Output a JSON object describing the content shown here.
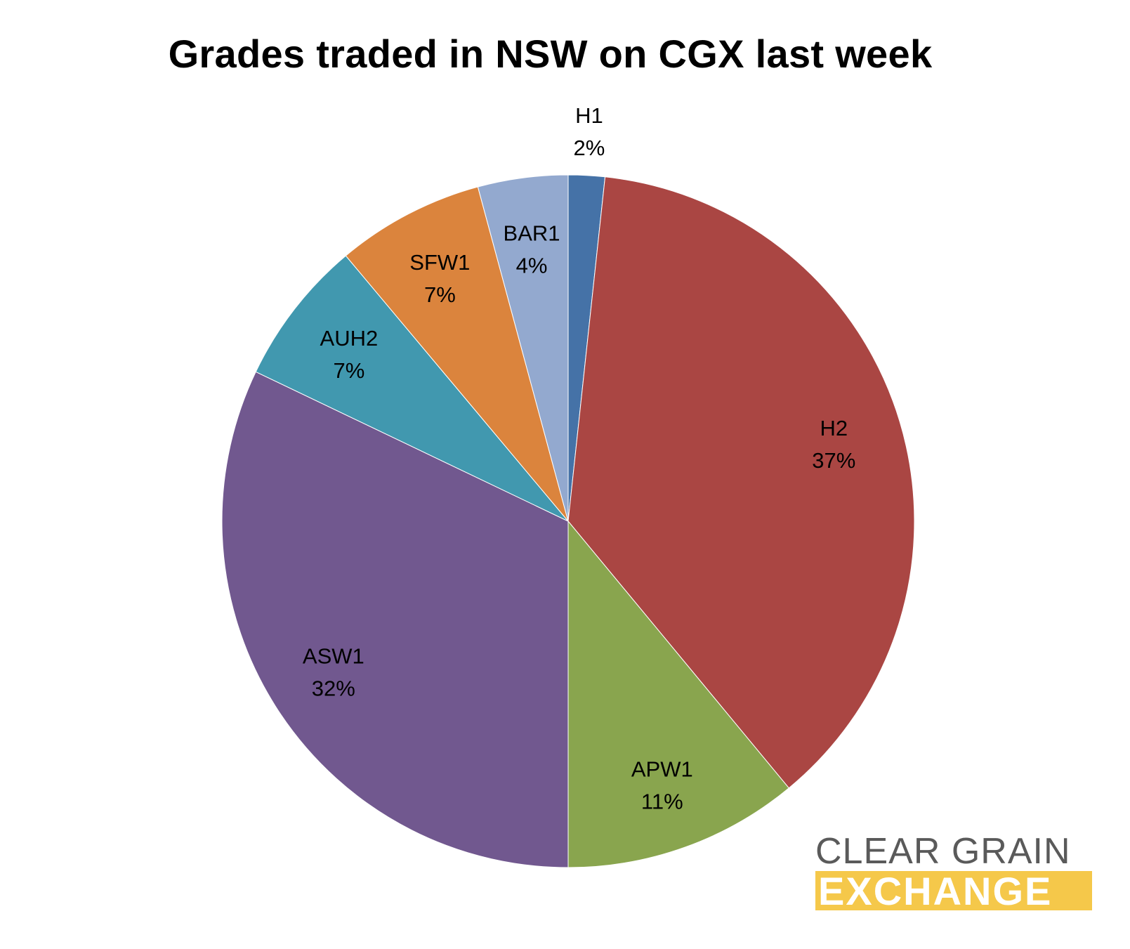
{
  "chart_data": {
    "type": "pie",
    "title": "Grades traded in NSW on CGX last week",
    "slices": [
      {
        "label": "H1",
        "value_label": "2%",
        "value": 1.7,
        "color": "#4572a7"
      },
      {
        "label": "H2",
        "value_label": "37%",
        "value": 37.3,
        "color": "#aa4643"
      },
      {
        "label": "APW1",
        "value_label": "11%",
        "value": 11.0,
        "color": "#89a54e"
      },
      {
        "label": "ASW1",
        "value_label": "32%",
        "value": 32.1,
        "color": "#71588f"
      },
      {
        "label": "AUH2",
        "value_label": "7%",
        "value": 6.8,
        "color": "#4198af"
      },
      {
        "label": "SFW1",
        "value_label": "7%",
        "value": 6.9,
        "color": "#db843d"
      },
      {
        "label": "BAR1",
        "value_label": "4%",
        "value": 4.2,
        "color": "#93a9cf"
      }
    ],
    "start": "12 o'clock",
    "direction": "clockwise",
    "legend": "none"
  },
  "logo": {
    "line1": "CLEAR GRAIN",
    "line2": "EXCHANGE",
    "text_color": "#5a5a5a",
    "band_color": "#f5c84a"
  }
}
